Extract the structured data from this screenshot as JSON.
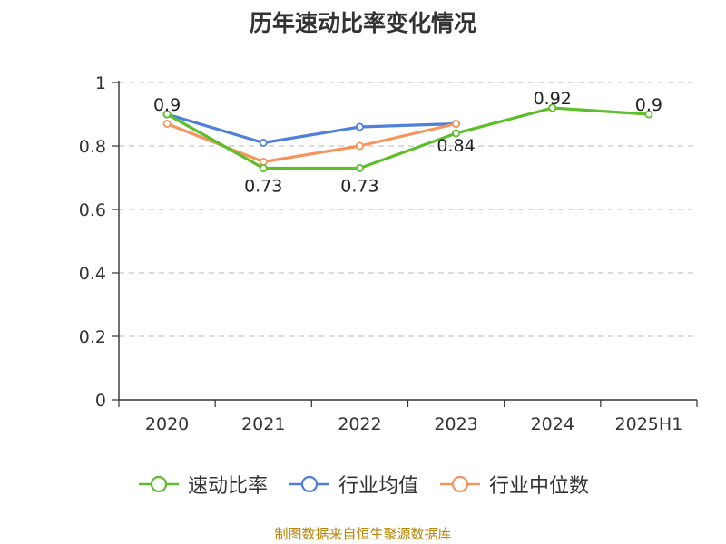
{
  "page": {
    "title": "历年速动比率变化情况",
    "source": "制图数据来自恒生聚源数据库"
  },
  "chart_data": {
    "type": "line",
    "title": "历年速动比率变化情况",
    "xlabel": "",
    "ylabel": "",
    "categories": [
      "2020",
      "2021",
      "2022",
      "2023",
      "2024",
      "2025H1"
    ],
    "ylim": [
      0,
      1
    ],
    "yticks": [
      "0",
      "0.2",
      "0.4",
      "0.6",
      "0.8",
      "1"
    ],
    "grid": "horizontal-dashed",
    "legend_position": "bottom",
    "series": [
      {
        "name": "速动比率",
        "color": "#5cbf2a",
        "values": [
          0.9,
          0.73,
          0.73,
          0.84,
          0.92,
          0.9
        ],
        "labels": [
          "0.9",
          "0.73",
          "0.73",
          "0.84",
          "0.92",
          "0.9"
        ]
      },
      {
        "name": "行业均值",
        "color": "#4f7fd6",
        "values": [
          0.9,
          0.81,
          0.86,
          0.87,
          null,
          null
        ]
      },
      {
        "name": "行业中位数",
        "color": "#f5945c",
        "values": [
          0.87,
          0.75,
          0.8,
          0.87,
          null,
          null
        ]
      }
    ]
  }
}
